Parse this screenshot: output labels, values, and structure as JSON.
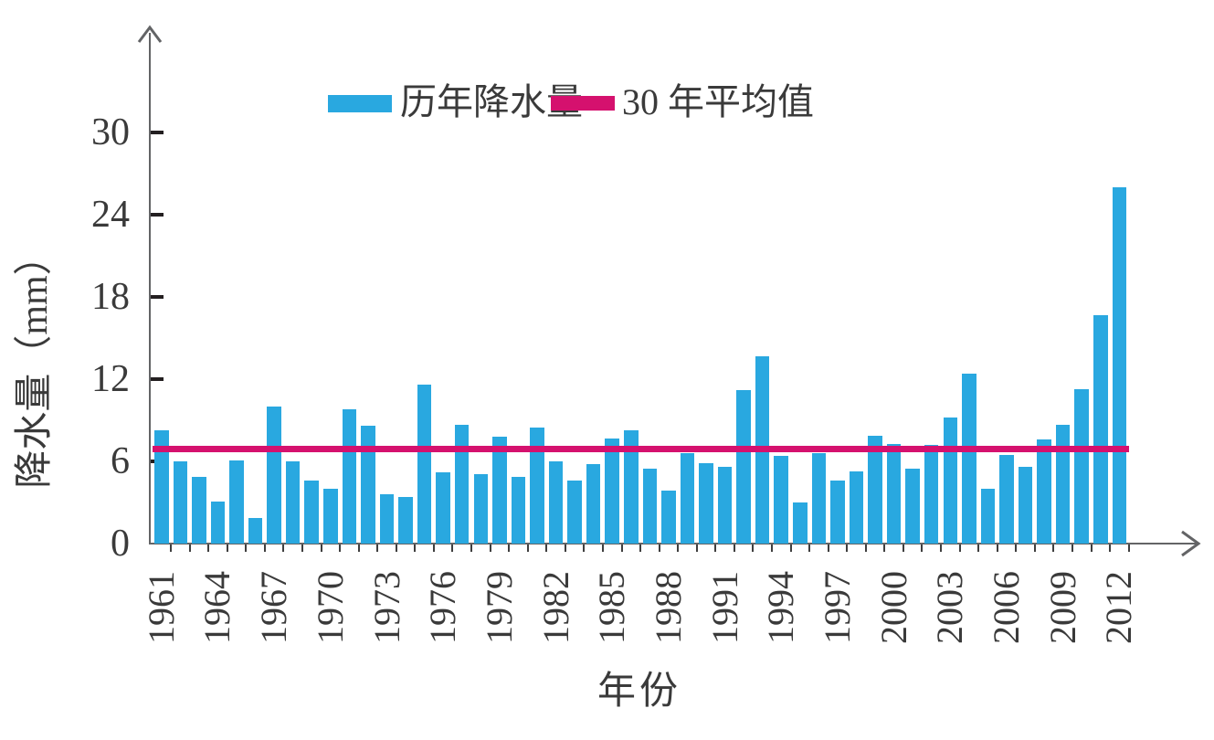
{
  "figure": {
    "background_color": "#ffffff",
    "axis_color": "#636466",
    "tick_color": "#231f20",
    "text_color": "#3a3a3a"
  },
  "legend": {
    "bar_label": "历年降水量",
    "bar_color": "#29a8e0",
    "line_label": "30 年平均值",
    "line_color": "#d5116e"
  },
  "chart_data": {
    "type": "bar",
    "title": "",
    "xlabel": "年份",
    "ylabel": "降水量（mm）",
    "ylim": [
      0,
      33
    ],
    "yticks": [
      0,
      6,
      12,
      18,
      24,
      30
    ],
    "x_tick_step": 3,
    "grid": false,
    "legend_position": "top-center",
    "categories": [
      1961,
      1962,
      1963,
      1964,
      1965,
      1966,
      1967,
      1968,
      1969,
      1970,
      1971,
      1972,
      1973,
      1974,
      1975,
      1976,
      1977,
      1978,
      1979,
      1980,
      1981,
      1982,
      1983,
      1984,
      1985,
      1986,
      1987,
      1988,
      1989,
      1990,
      1991,
      1992,
      1993,
      1994,
      1995,
      1996,
      1997,
      1998,
      1999,
      2000,
      2001,
      2002,
      2003,
      2004,
      2005,
      2006,
      2007,
      2008,
      2009,
      2010,
      2011,
      2012
    ],
    "series": [
      {
        "name": "历年降水量",
        "type": "bar",
        "color": "#29a8e0",
        "values": [
          8.3,
          6.0,
          4.9,
          3.1,
          6.1,
          1.9,
          10.0,
          6.0,
          4.6,
          4.0,
          9.8,
          8.6,
          3.6,
          3.4,
          11.6,
          5.2,
          8.7,
          5.1,
          7.8,
          4.9,
          8.5,
          6.0,
          4.6,
          5.8,
          7.7,
          8.3,
          5.5,
          3.9,
          6.6,
          5.9,
          5.6,
          11.2,
          13.7,
          6.4,
          3.0,
          6.6,
          4.6,
          5.3,
          7.9,
          7.3,
          5.5,
          7.2,
          9.2,
          12.4,
          4.0,
          6.5,
          5.6,
          7.6,
          8.7,
          11.3,
          16.7,
          26.0
        ]
      },
      {
        "name": "30 年平均值",
        "type": "line",
        "color": "#d5116e",
        "value": 6.9
      }
    ]
  }
}
